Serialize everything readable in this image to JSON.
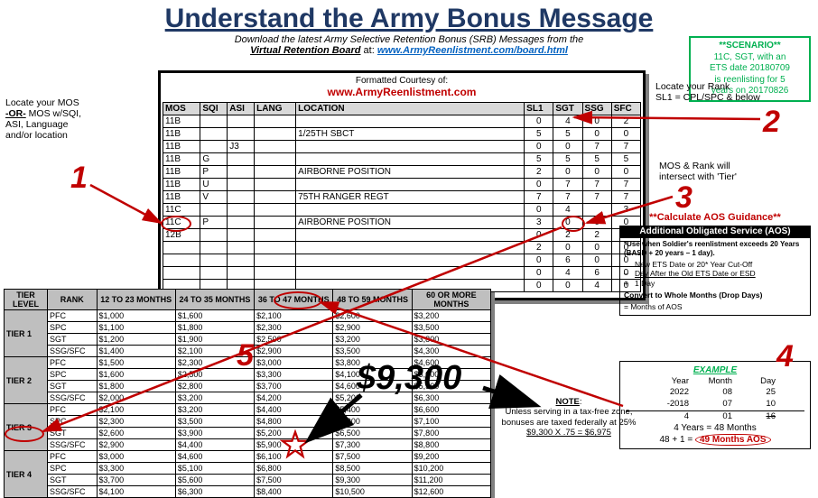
{
  "title": "Understand the Army Bonus Message",
  "subtitle_line1": "Download the latest Army Selective Retention Bonus (SRB) Messages from the",
  "subtitle_label": "Virtual Retention Board",
  "subtitle_at": " at:  ",
  "subtitle_link": "www.ArmyReenlistment.com/board.html",
  "scenario": {
    "header": "**SCENARIO**",
    "l1": "11C, SGT, with an",
    "l2": "ETS date 20180709",
    "l3": "is reenlisting for 5",
    "l4": "years on 20170826"
  },
  "mos_panel": {
    "courtesy": "Formatted Courtesy of:",
    "brand": "www.ArmyReenlistment.com",
    "headers": [
      "MOS",
      "SQI",
      "ASI",
      "LANG",
      "LOCATION",
      "SL1",
      "SGT",
      "SSG",
      "SFC"
    ],
    "rows": [
      {
        "mos": "11B",
        "sqi": "",
        "asi": "",
        "lang": "",
        "loc": "",
        "sl1": "0",
        "sgt": "4",
        "ssg": "0",
        "sfc": "2"
      },
      {
        "mos": "11B",
        "sqi": "",
        "asi": "",
        "lang": "",
        "loc": "1/25TH SBCT",
        "sl1": "5",
        "sgt": "5",
        "ssg": "0",
        "sfc": "0"
      },
      {
        "mos": "11B",
        "sqi": "",
        "asi": "J3",
        "lang": "",
        "loc": "",
        "sl1": "0",
        "sgt": "0",
        "ssg": "7",
        "sfc": "7"
      },
      {
        "mos": "11B",
        "sqi": "G",
        "asi": "",
        "lang": "",
        "loc": "",
        "sl1": "5",
        "sgt": "5",
        "ssg": "5",
        "sfc": "5"
      },
      {
        "mos": "11B",
        "sqi": "P",
        "asi": "",
        "lang": "",
        "loc": "AIRBORNE POSITION",
        "sl1": "2",
        "sgt": "0",
        "ssg": "0",
        "sfc": "0"
      },
      {
        "mos": "11B",
        "sqi": "U",
        "asi": "",
        "lang": "",
        "loc": "",
        "sl1": "0",
        "sgt": "7",
        "ssg": "7",
        "sfc": "7"
      },
      {
        "mos": "11B",
        "sqi": "V",
        "asi": "",
        "lang": "",
        "loc": "75TH RANGER REGT",
        "sl1": "7",
        "sgt": "7",
        "ssg": "7",
        "sfc": "7"
      },
      {
        "mos": "11C",
        "sqi": "",
        "asi": "",
        "lang": "",
        "loc": "",
        "sl1": "0",
        "sgt": "4",
        "ssg": "",
        "sfc": "3"
      },
      {
        "mos": "11C",
        "sqi": "P",
        "asi": "",
        "lang": "",
        "loc": "AIRBORNE POSITION",
        "sl1": "3",
        "sgt": "0",
        "ssg": "0",
        "sfc": "0"
      },
      {
        "mos": "12B",
        "sqi": "",
        "asi": "",
        "lang": "",
        "loc": "",
        "sl1": "0",
        "sgt": "2",
        "ssg": "2",
        "sfc": "0"
      },
      {
        "mos": "",
        "sqi": "",
        "asi": "",
        "lang": "",
        "loc": "",
        "sl1": "2",
        "sgt": "0",
        "ssg": "0",
        "sfc": "0"
      },
      {
        "mos": "",
        "sqi": "",
        "asi": "",
        "lang": "",
        "loc": "",
        "sl1": "0",
        "sgt": "6",
        "ssg": "0",
        "sfc": "0"
      },
      {
        "mos": "",
        "sqi": "",
        "asi": "",
        "lang": "",
        "loc": "",
        "sl1": "0",
        "sgt": "4",
        "ssg": "6",
        "sfc": "0"
      },
      {
        "mos": "",
        "sqi": "",
        "asi": "",
        "lang": "",
        "loc": "",
        "sl1": "0",
        "sgt": "0",
        "ssg": "4",
        "sfc": "0"
      }
    ]
  },
  "tier_panel": {
    "headers": [
      "TIER LEVEL",
      "RANK",
      "12 TO 23 MONTHS",
      "24 TO 35 MONTHS",
      "36 TO 47 MONTHS",
      "48 TO 59 MONTHS",
      "60 OR MORE MONTHS"
    ],
    "tiers": [
      {
        "name": "TIER 1",
        "rows": [
          {
            "rank": "PFC",
            "v": [
              "$1,000",
              "$1,600",
              "$2,100",
              "$2,600",
              "$3,200"
            ]
          },
          {
            "rank": "SPC",
            "v": [
              "$1,100",
              "$1,800",
              "$2,300",
              "$2,900",
              "$3,500"
            ]
          },
          {
            "rank": "SGT",
            "v": [
              "$1,200",
              "$1,900",
              "$2,500",
              "$3,200",
              "$3,800"
            ]
          },
          {
            "rank": "SSG/SFC",
            "v": [
              "$1,400",
              "$2,100",
              "$2,900",
              "$3,500",
              "$4,300"
            ]
          }
        ]
      },
      {
        "name": "TIER 2",
        "rows": [
          {
            "rank": "PFC",
            "v": [
              "$1,500",
              "$2,300",
              "$3,000",
              "$3,800",
              "$4,600"
            ]
          },
          {
            "rank": "SPC",
            "v": [
              "$1,600",
              "$2,500",
              "$3,300",
              "$4,100",
              "$5,000"
            ]
          },
          {
            "rank": "SGT",
            "v": [
              "$1,800",
              "$2,800",
              "$3,700",
              "$4,600",
              "$5,500"
            ]
          },
          {
            "rank": "SSG/SFC",
            "v": [
              "$2,000",
              "$3,200",
              "$4,200",
              "$5,200",
              "$6,300"
            ]
          }
        ]
      },
      {
        "name": "TIER 3",
        "rows": [
          {
            "rank": "PFC",
            "v": [
              "$2,100",
              "$3,200",
              "$4,400",
              "$5,400",
              "$6,600"
            ]
          },
          {
            "rank": "SPC",
            "v": [
              "$2,300",
              "$3,500",
              "$4,800",
              "$5,900",
              "$7,100"
            ]
          },
          {
            "rank": "SGT",
            "v": [
              "$2,600",
              "$3,900",
              "$5,200",
              "$6,500",
              "$7,800"
            ]
          },
          {
            "rank": "SSG/SFC",
            "v": [
              "$2,900",
              "$4,400",
              "$5,900",
              "$7,300",
              "$8,800"
            ]
          }
        ]
      },
      {
        "name": "TIER 4",
        "rows": [
          {
            "rank": "PFC",
            "v": [
              "$3,000",
              "$4,600",
              "$6,100",
              "$7,500",
              "$9,200"
            ]
          },
          {
            "rank": "SPC",
            "v": [
              "$3,300",
              "$5,100",
              "$6,800",
              "$8,500",
              "$10,200"
            ]
          },
          {
            "rank": "SGT",
            "v": [
              "$3,700",
              "$5,600",
              "$7,500",
              "$9,300",
              "$11,200"
            ]
          },
          {
            "rank": "SSG/SFC",
            "v": [
              "$4,100",
              "$6,300",
              "$8,400",
              "$10,500",
              "$12,600"
            ]
          }
        ]
      }
    ]
  },
  "aos": {
    "header": "**Calculate AOS Guidance**",
    "black": "Additional Obligated Service (AOS)",
    "note": "*Use when Soldier's reenlistment exceeds 20 Years (BASD + 20 years – 1 day).",
    "r1": "New ETS Date or 20* Year Cut-Off",
    "r2": "Day After the Old ETS Date or ESD",
    "r3": "1 Day",
    "convert": "Convert to Whole Months (Drop Days)",
    "eq": "=   Months of AOS"
  },
  "example": {
    "header": "EXAMPLE",
    "h_y": "Year",
    "h_m": "Month",
    "h_d": "Day",
    "r1_y": "2022",
    "r1_m": "08",
    "r1_d": "25",
    "r2_y": "-2018",
    "r2_m": "07",
    "r2_d": "10",
    "r3_y": "4",
    "r3_m": "01",
    "r3_d": "16",
    "l1": "4 Years = 48 Months",
    "l2a": "48 + 1 = ",
    "l2b": "49 Months AOS"
  },
  "bonus": "$9,300",
  "note": {
    "hdr": "NOTE",
    "l1": "Unless serving in a tax-free zone,",
    "l2": "bonuses are taxed federally at 25%",
    "l3": "$9,300 X .75 = $6,975"
  },
  "side": {
    "s1a": "Locate your MOS",
    "s1b": "-OR- MOS w/SQI,",
    "s1c": "ASI, Language",
    "s1d": "and/or location",
    "s2a": "Locate your Rank",
    "s2b": "SL1 = CPL/SPC & below",
    "s3a": "MOS & Rank will",
    "s3b": "intersect with 'Tier'"
  },
  "nums": {
    "n1": "1",
    "n2": "2",
    "n3": "3",
    "n4": "4",
    "n5": "5"
  }
}
